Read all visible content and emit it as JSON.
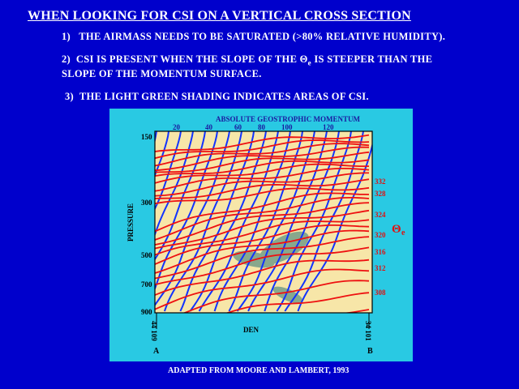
{
  "header": {
    "title": "WHEN LOOKING FOR CSI ON A VERTICAL CROSS SECTION",
    "points": [
      {
        "num": "1)",
        "text": "THE AIRMASS NEEDS TO BE SATURATED (>80% RELATIVE HUMIDITY)."
      },
      {
        "num": "2)",
        "text_a": "CSI IS PRESENT WHEN THE SLOPE OF THE Θ",
        "subscript": "e",
        "text_b": " IS STEEPER THAN THE",
        "text_line2": "SLOPE OF THE MOMENTUM SURFACE."
      },
      {
        "num": "3)",
        "text": "THE LIGHT GREEN SHADING INDICATES AREAS OF CSI."
      }
    ]
  },
  "diagram": {
    "top_axis_title": "ABSOLUTE GEOSTROPHIC MOMENTUM",
    "top_ticks": [
      "20",
      "40",
      "60",
      "80",
      "100",
      "120"
    ],
    "pressure_label": "PRESSURE",
    "pressure_ticks": [
      "150",
      "300",
      "500",
      "700",
      "900"
    ],
    "theta_ticks": [
      "332",
      "328",
      "324",
      "320",
      "316",
      "312",
      "308"
    ],
    "theta_symbol": "Θ",
    "theta_sub": "e",
    "left_station": "44 109",
    "right_station": "34 101",
    "point_a": "A",
    "point_b": "B",
    "center_label": "DEN",
    "colors": {
      "background": "#0000cc",
      "frame": "#29c9e3",
      "plot": "#f7e6a8",
      "theta_lines": "#ee1111",
      "momentum_lines": "#1133ff",
      "csi_shading": "#88a88c"
    }
  },
  "credit": "ADAPTED FROM MOORE AND LAMBERT, 1993"
}
